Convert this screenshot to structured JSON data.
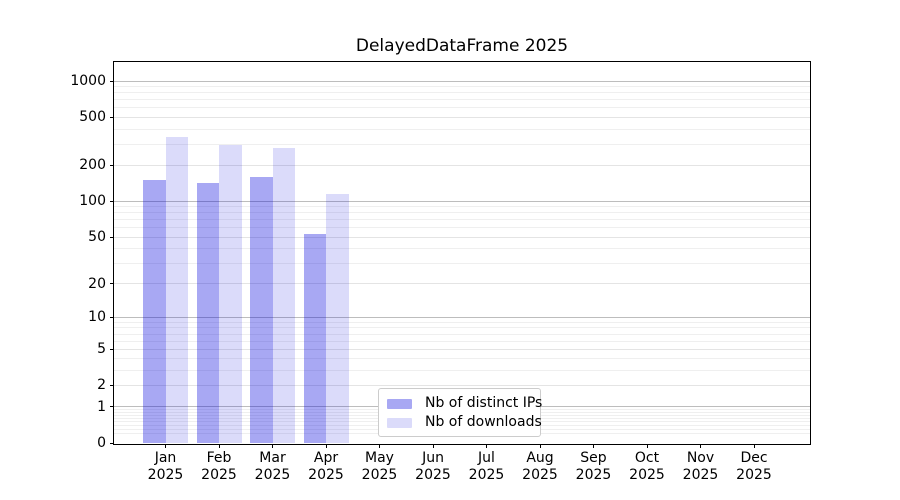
{
  "chart_data": {
    "type": "bar",
    "title": "DelayedDataFrame 2025",
    "categories": [
      "Jan 2025",
      "Feb 2025",
      "Mar 2025",
      "Apr 2025",
      "May 2025",
      "Jun 2025",
      "Jul 2025",
      "Aug 2025",
      "Sep 2025",
      "Oct 2025",
      "Nov 2025",
      "Dec 2025"
    ],
    "months": [
      "Jan",
      "Feb",
      "Mar",
      "Apr",
      "May",
      "Jun",
      "Jul",
      "Aug",
      "Sep",
      "Oct",
      "Nov",
      "Dec"
    ],
    "year": "2025",
    "series": [
      {
        "name": "Nb of distinct IPs",
        "color": "rgba(0,0,220,0.34)",
        "values": [
          150,
          142,
          160,
          53,
          0,
          0,
          0,
          0,
          0,
          0,
          0,
          0
        ]
      },
      {
        "name": "Nb of downloads",
        "color": "rgba(0,0,220,0.14)",
        "values": [
          345,
          295,
          280,
          115,
          0,
          0,
          0,
          0,
          0,
          0,
          0,
          0
        ]
      }
    ],
    "yscale": "log1p",
    "ylim": [
      0,
      1440
    ],
    "y_major_ticks": [
      1000,
      500,
      200,
      100,
      50,
      20,
      10,
      5,
      2,
      1,
      0
    ],
    "y_minor_ticks": [
      0.2,
      0.3,
      0.4,
      0.5,
      0.6,
      0.7,
      0.8,
      0.9,
      3,
      4,
      6,
      7,
      8,
      9,
      30,
      40,
      60,
      70,
      80,
      90,
      300,
      400,
      600,
      700,
      800,
      900
    ],
    "grid": true,
    "legend_position": "lower center"
  },
  "colors": {
    "decade_grid": "#bdbdbd",
    "labeled_grid": "#e4e4e4",
    "minor_grid": "#efefef",
    "spine": "#000000",
    "legend_border": "#cccccc",
    "background": "#ffffff"
  }
}
